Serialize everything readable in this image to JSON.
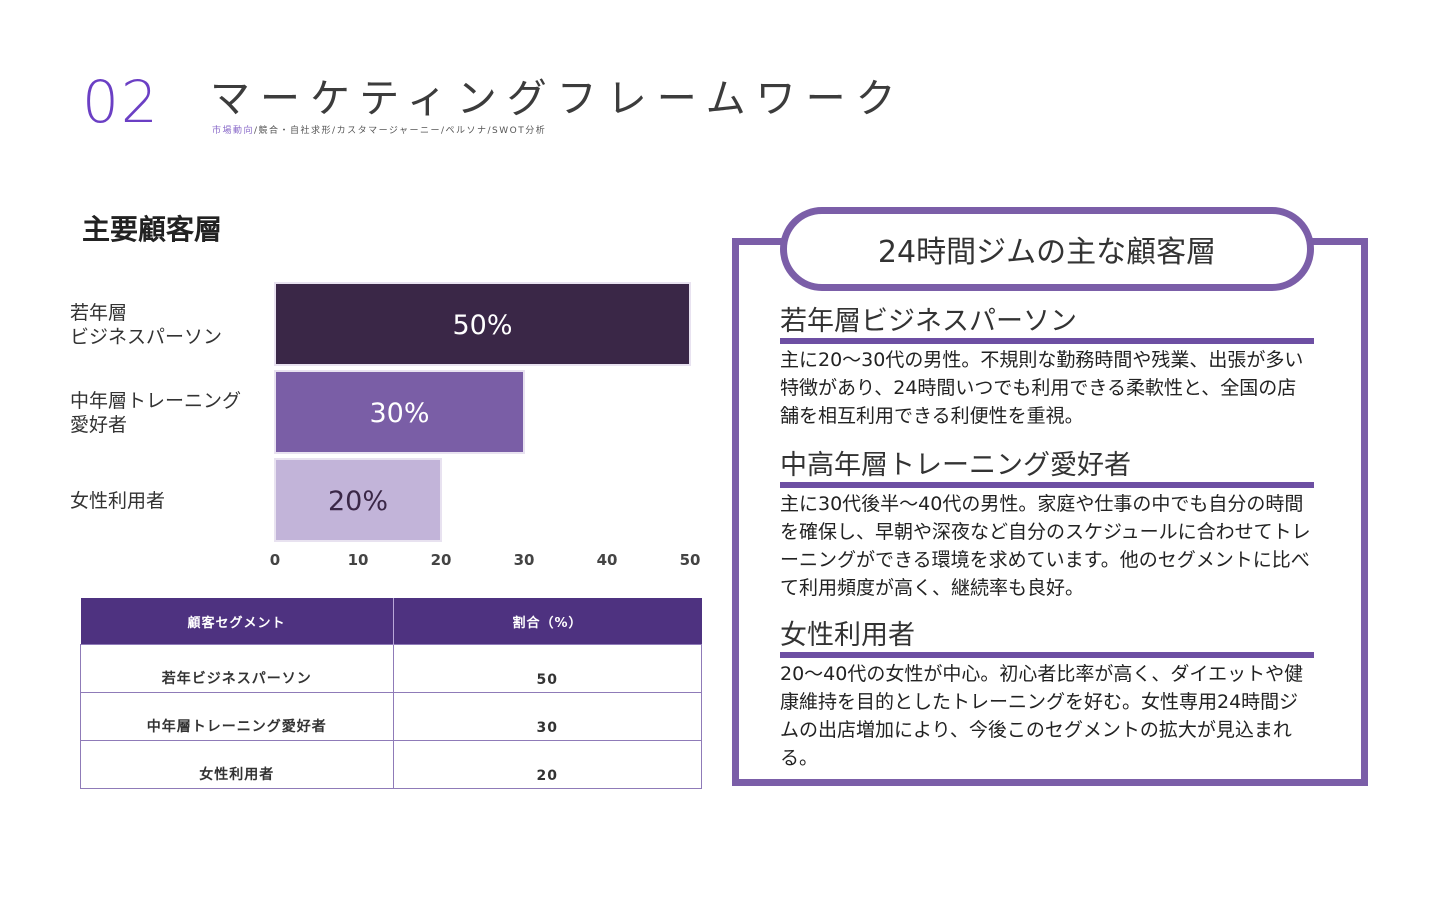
{
  "header": {
    "section_number": "02",
    "title": "マーケティングフレームワーク",
    "breadcrumb_active": "市場動向",
    "breadcrumb_rest": "/競合・自社求形/カスタマージャーニー/ペルソナ/SWOT分析"
  },
  "chart_title": "主要顧客層",
  "chart_data": {
    "type": "bar",
    "orientation": "horizontal",
    "categories": [
      "若年層\nビジネスパーソン",
      "中年層トレーニング\n愛好者",
      "女性利用者"
    ],
    "values": [
      50,
      30,
      20
    ],
    "data_labels": [
      "50%",
      "30%",
      "20%"
    ],
    "colors": [
      "#3a2747",
      "#7a5ea6",
      "#c2b4d9"
    ],
    "label_colors": [
      "#ffffff",
      "#ffffff",
      "#3a2747"
    ],
    "xlim": [
      0,
      50
    ],
    "xticks": [
      0,
      10,
      20,
      30,
      40,
      50
    ],
    "legend": "none",
    "grid": false
  },
  "table": {
    "headers": [
      "顧客セグメント",
      "割合（%）"
    ],
    "rows": [
      [
        "若年ビジネスパーソン",
        "50"
      ],
      [
        "中年層トレーニング愛好者",
        "30"
      ],
      [
        "女性利用者",
        "20"
      ]
    ]
  },
  "panel": {
    "title": "24時間ジムの主な顧客層",
    "segments": [
      {
        "heading": "若年層ビジネスパーソン",
        "body": "主に20〜30代の男性。不規則な勤務時間や残業、出張が多い特徴があり、24時間いつでも利用できる柔軟性と、全国の店舗を相互利用できる利便性を重視。"
      },
      {
        "heading": "中高年層トレーニング愛好者",
        "body": "主に30代後半〜40代の男性。家庭や仕事の中でも自分の時間を確保し、早朝や深夜など自分のスケジュールに合わせてトレーニングができる環境を求めています。他のセグメントに比べて利用頻度が高く、継続率も良好。"
      },
      {
        "heading": "女性利用者",
        "body": "20〜40代の女性が中心。初心者比率が高く、ダイエットや健康維持を目的としたトレーニングを好む。女性専用24時間ジムの出店増加により、今後このセグメントの拡大が見込まれる。"
      }
    ]
  }
}
